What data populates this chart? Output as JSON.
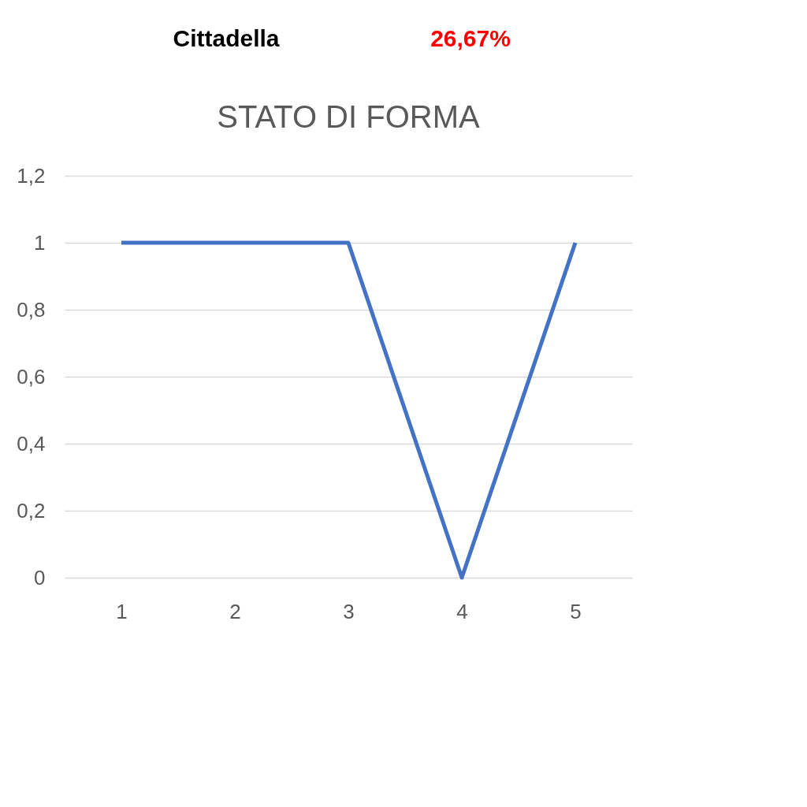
{
  "chart_data": {
    "type": "line",
    "title": "STATO DI FORMA",
    "annotations": [
      "Cittadella",
      "26,67%"
    ],
    "categories": [
      "1",
      "2",
      "3",
      "4",
      "5"
    ],
    "series": [
      {
        "color": "#4472c4",
        "values": [
          1,
          1,
          1,
          0,
          1
        ]
      }
    ],
    "ylim": [
      0,
      1.2
    ],
    "yticks": [
      0,
      {
        "value": 0.2,
        "label": "0,2"
      },
      {
        "value": 0.4,
        "label": "0,4"
      },
      {
        "value": 0.6,
        "label": "0,6"
      },
      {
        "value": 0.8,
        "label": "0,8"
      },
      1,
      {
        "value": 1.2,
        "label": "1,2"
      }
    ],
    "grid": "y",
    "marker": "none",
    "line_style": "solid"
  }
}
